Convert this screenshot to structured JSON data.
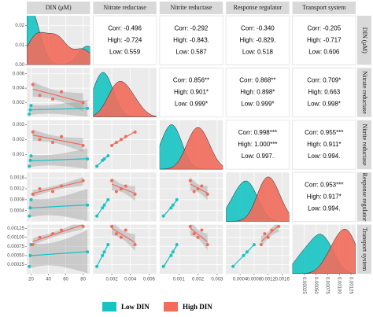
{
  "chart_data": {
    "type": "pairs",
    "variables": [
      "DIN (μM)",
      "Nitrate reductase",
      "Nitrite reductase",
      "Response regulator",
      "Transport system"
    ],
    "axes": [
      {
        "lim": [
          15,
          88
        ],
        "ticks": [
          20,
          40,
          60,
          80
        ]
      },
      {
        "lim": [
          0,
          0.0068
        ],
        "ticks": [
          0.002,
          0.004,
          0.006
        ]
      },
      {
        "lim": [
          0,
          0.0033
        ],
        "ticks": [
          0.001,
          0.002,
          0.003
        ]
      },
      {
        "lim": [
          0,
          0.0018
        ],
        "ticks": [
          0.0004,
          0.0008,
          0.0012,
          0.0016
        ]
      },
      {
        "lim": [
          0,
          0.00135
        ],
        "ticks": [
          0.00025,
          {
            "value": 0.0005,
            "label": "0.00050"
          },
          0.00075,
          {
            "value": 0.001,
            "label": "0.00100"
          },
          0.00125
        ]
      }
    ],
    "density_axis": {
      "lim": [
        0,
        0.025
      ],
      "ticks": [
        {
          "value": 0,
          "label": "0.00"
        },
        0.01,
        0.02
      ]
    },
    "groups": [
      {
        "name": "Low DIN",
        "color": "#17c3c3",
        "observations": [
          [
            18,
            0.0004,
            0.0002,
            0.0002,
            0.0002
          ],
          [
            19,
            0.001,
            0.0006,
            0.0005,
            0.0005
          ],
          [
            20,
            0.0016,
            0.0009,
            0.0008,
            0.0008
          ],
          [
            85,
            0.0012,
            0.0007,
            0.0006,
            0.0006
          ]
        ]
      },
      {
        "name": "High DIN",
        "color": "#f26b5b",
        "observations": [
          [
            22,
            0.0045,
            0.0025,
            0.001,
            0.0008
          ],
          [
            30,
            0.003,
            0.002,
            0.0012,
            0.001
          ],
          [
            45,
            0.0025,
            0.0018,
            0.0011,
            0.0011
          ],
          [
            55,
            0.0035,
            0.0022,
            0.0013,
            0.0012
          ],
          [
            80,
            0.002,
            0.0016,
            0.0015,
            0.0013
          ]
        ]
      }
    ],
    "upper": [
      [
        [
          "Corr: -0.496",
          "High: -0.724",
          "Low: 0.559"
        ],
        [
          "Corr: -0.292",
          "High: -0.843.",
          "Low: 0.587"
        ],
        [
          "Corr: -0.340",
          "High: -0.829.",
          "Low: 0.518"
        ],
        [
          "Corr: -0.205",
          "High: -0.717",
          "Low: 0.606"
        ]
      ],
      [
        [
          "Corr: 0.856**",
          "High: 0.901*",
          "Low: 0.999*"
        ],
        [
          "Corr: 0.868**",
          "High: 0.898*",
          "Low: 0.999*"
        ],
        [
          "Corr: 0.709*",
          "High: 0.663",
          "Low: 0.998*"
        ]
      ],
      [
        [
          "Corr: 0.998***",
          "High: 1.000***",
          "Low: 0.997."
        ],
        [
          "Corr: 0.955***",
          "High: 0.911*",
          "Low: 0.994."
        ]
      ],
      [
        [
          "Corr: 0.953***",
          "High: 0.917*",
          "Low: 0.994."
        ]
      ]
    ]
  }
}
